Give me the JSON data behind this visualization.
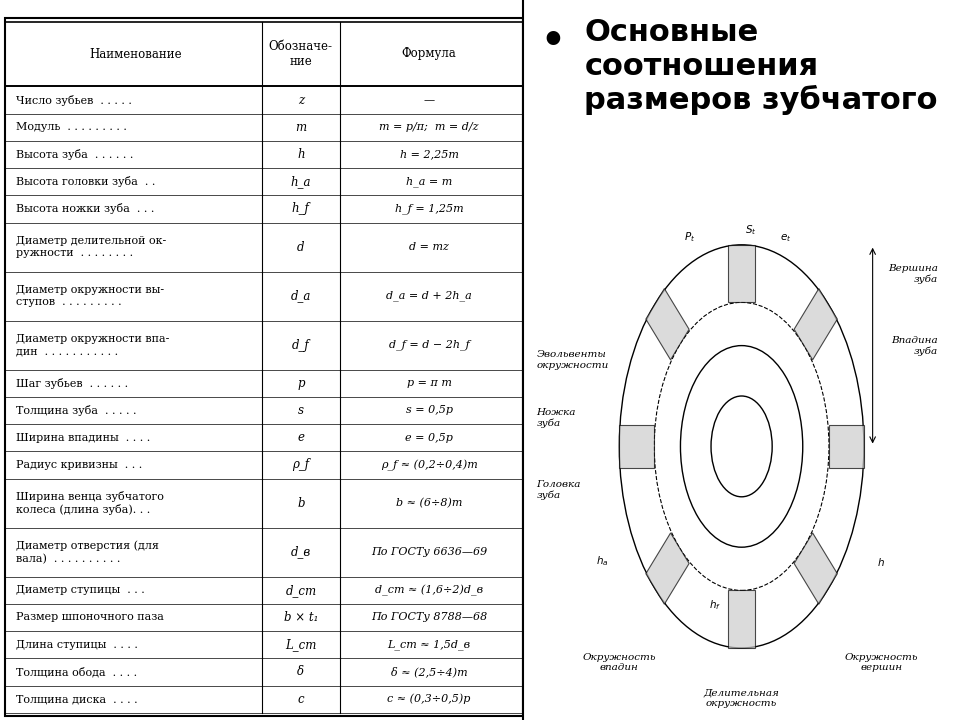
{
  "title_text": "Основные\nсоотношения\nразмеров зубчатого",
  "table_header": [
    "Наименование",
    "Обозначе-\nние",
    "Формула"
  ],
  "rows": [
    [
      "Число зубьев  . . . . .",
      "z",
      "—"
    ],
    [
      "Модуль  . . . . . . . . .",
      "m",
      "m = p/π;  m = d/z"
    ],
    [
      "Высота зуба  . . . . . .",
      "h",
      "h = 2,25m"
    ],
    [
      "Высота головки зуба  . .",
      "h_a",
      "h_a = m"
    ],
    [
      "Высота ножки зуба  . . .",
      "h_f",
      "h_f = 1,25m"
    ],
    [
      "Диаметр делительной ок-\nружности  . . . . . . . .",
      "d",
      "d = mz"
    ],
    [
      "Диаметр окружности вы-\nступов  . . . . . . . . .",
      "d_a",
      "d_a = d + 2h_a"
    ],
    [
      "Диаметр окружности впа-\nдин  . . . . . . . . . . .",
      "d_f",
      "d_f = d − 2h_f"
    ],
    [
      "Шаг зубьев  . . . . . .",
      "p",
      "p = π m"
    ],
    [
      "Толщина зуба  . . . . .",
      "s",
      "s = 0,5p"
    ],
    [
      "Ширина впадины  . . . .",
      "e",
      "e = 0,5p"
    ],
    [
      "Радиус кривизны  . . .",
      "ρ_f",
      "ρ_f ≈ (0,2÷0,4)m"
    ],
    [
      "Ширина венца зубчатого\nколеса (длина зуба). . .",
      "b",
      "b ≈ (6÷8)m"
    ],
    [
      "Диаметр отверстия (для\nвала)  . . . . . . . . . .",
      "d_в",
      "По ГОСТу 6636—69"
    ],
    [
      "Диаметр ступицы  . . .",
      "d_ст",
      "d_ст ≈ (1,6÷2)d_в"
    ],
    [
      "Размер шпоночного паза",
      "b × t₁",
      "По ГОСТу 8788—68"
    ],
    [
      "Длина ступицы  . . . .",
      "L_ст",
      "L_ст ≈ 1,5d_в"
    ],
    [
      "Толщина обода  . . . .",
      "δ",
      "δ ≈ (2,5÷4)m"
    ],
    [
      "Толщина диска  . . . .",
      "c",
      "c ≈ (0,3÷0,5)p"
    ]
  ],
  "background_color": "#ffffff",
  "table_bg": "#ffffff",
  "border_color": "#000000",
  "text_color": "#000000",
  "font_size_table": 8.5,
  "font_size_title": 22
}
